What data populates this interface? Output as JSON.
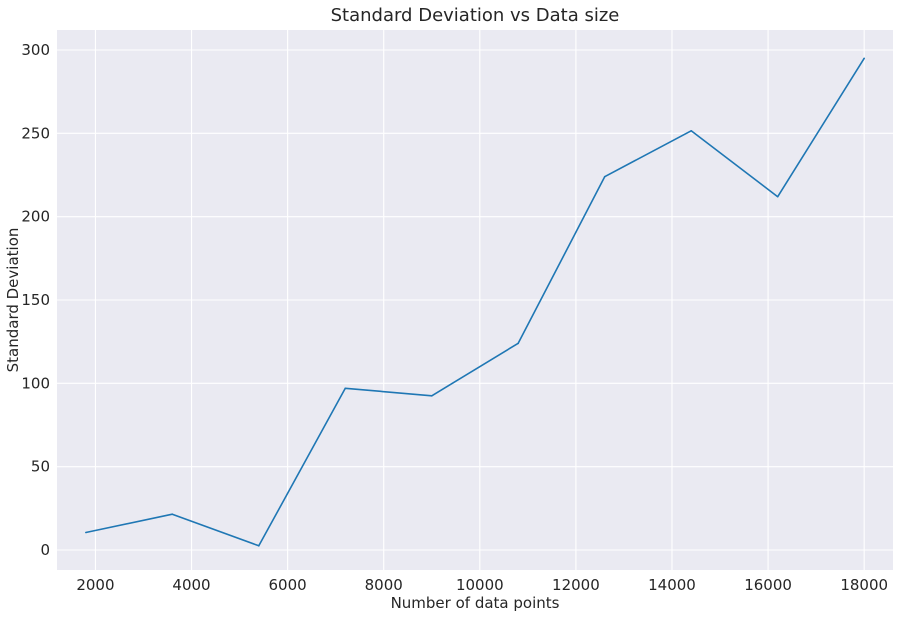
{
  "chart_data": {
    "type": "line",
    "title": "Standard Deviation vs Data size",
    "xlabel": "Number of data points",
    "ylabel": "Standard Deviation",
    "xlim": [
      1200,
      18600
    ],
    "ylim": [
      -12,
      312
    ],
    "x_ticks": [
      2000,
      4000,
      6000,
      8000,
      10000,
      12000,
      14000,
      16000,
      18000
    ],
    "y_ticks": [
      0,
      50,
      100,
      150,
      200,
      250,
      300
    ],
    "grid": true,
    "series": [
      {
        "x": [
          1800,
          3600,
          5400,
          7200,
          9000,
          10800,
          12600,
          14400,
          16200,
          18000
        ],
        "y": [
          10.5,
          21.5,
          2.5,
          97,
          92.5,
          124,
          224,
          251.5,
          212,
          295
        ],
        "color": "#1f77b4"
      }
    ],
    "background_color": "#eaeaf2"
  }
}
